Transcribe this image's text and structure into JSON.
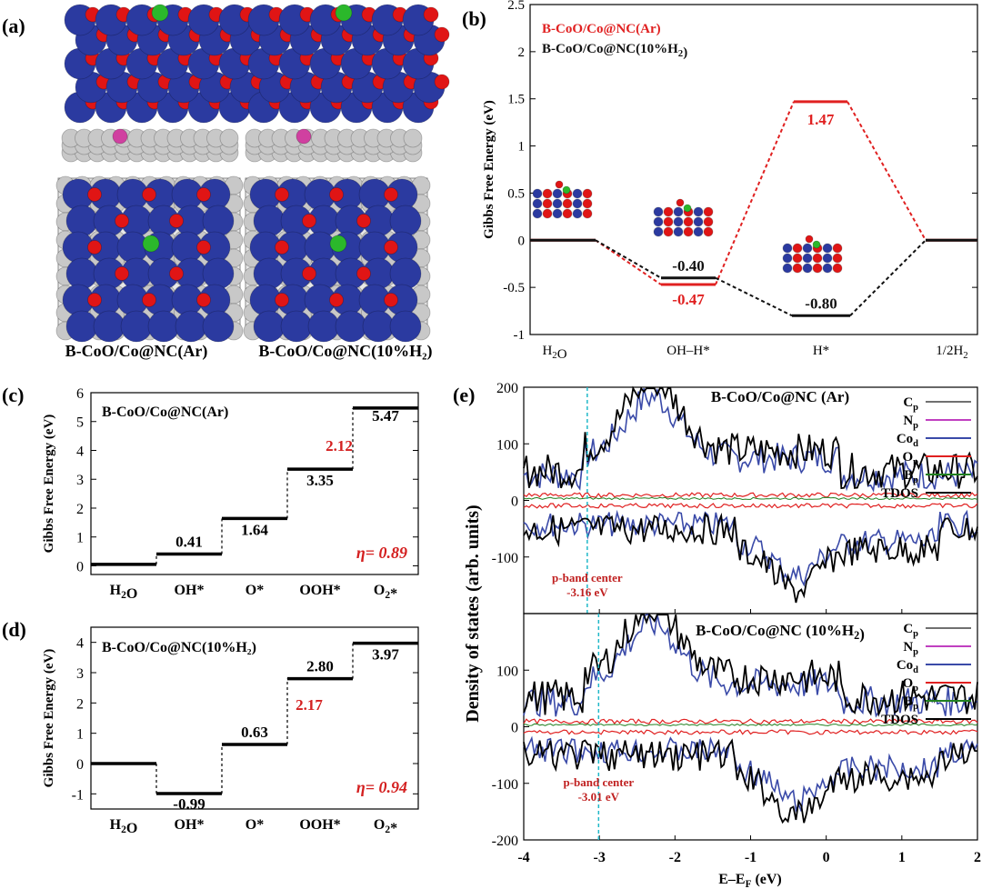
{
  "panels": {
    "a": {
      "label": "(a)",
      "captions": [
        "B-CoO/Co@NC(Ar)",
        "B-CoO/Co@NC(10%H₂)"
      ],
      "colors": {
        "co": "#2b3aa0",
        "o": "#e01515",
        "b": "#2bb82b",
        "n": "#d040a0",
        "c": "#c8c8c8"
      }
    },
    "b": {
      "label": "(b)"
    },
    "c": {
      "label": "(c)",
      "inner_title": "B-CoO/Co@NC(Ar)"
    },
    "d": {
      "label": "(d)",
      "inner_title": "B-CoO/Co@NC(10%H₂)"
    },
    "e": {
      "label": "(e)"
    }
  },
  "chart_data": [
    {
      "id": "b",
      "type": "line",
      "ylabel": "Gibbs Free Energy (eV)",
      "ylim": [
        -1,
        2.5
      ],
      "yticks": [
        -1,
        -0.5,
        0,
        0.5,
        1,
        1.5,
        2,
        2.5
      ],
      "categories": [
        "H₂O",
        "OH–H*",
        "H*",
        "1/2H₂"
      ],
      "series": [
        {
          "name": "B-CoO/Co@NC(Ar)",
          "color": "#e02020",
          "values": [
            0,
            -0.47,
            1.47,
            0
          ],
          "labels": [
            "",
            "-0.47",
            "1.47",
            ""
          ]
        },
        {
          "name": "B-CoO/Co@NC(10%H₂)",
          "color": "#111111",
          "values": [
            0,
            -0.4,
            -0.8,
            0
          ],
          "labels": [
            "",
            "-0.40",
            "-0.80",
            ""
          ]
        }
      ],
      "legend_position": "top-left"
    },
    {
      "id": "c",
      "type": "line",
      "ylabel": "Gibbs Free Energy (eV)",
      "ylim": [
        -0.3,
        6
      ],
      "yticks": [
        0,
        1,
        2,
        3,
        4,
        5,
        6
      ],
      "categories": [
        "H₂O",
        "OH*",
        "O*",
        "OOH*",
        "O₂*"
      ],
      "values": [
        0.05,
        0.41,
        1.64,
        3.35,
        5.47
      ],
      "labels": [
        "",
        "0.41",
        "1.64",
        "3.35",
        "5.47"
      ],
      "step_annotation": {
        "value": "2.12",
        "color": "#d42020"
      },
      "overpotential": "η= 0.89"
    },
    {
      "id": "d",
      "type": "line",
      "ylabel": "Gibbs Free Energy (eV)",
      "ylim": [
        -1.5,
        4.5
      ],
      "yticks": [
        -1,
        0,
        1,
        2,
        3,
        4
      ],
      "categories": [
        "H₂O",
        "OH*",
        "O*",
        "OOH*",
        "O₂*"
      ],
      "values": [
        0,
        -0.99,
        0.63,
        2.8,
        3.97
      ],
      "labels": [
        "",
        "-0.99",
        "0.63",
        "2.80",
        "3.97"
      ],
      "step_annotation": {
        "value": "2.17",
        "color": "#d42020"
      },
      "overpotential": "η= 0.94"
    },
    {
      "id": "e",
      "type": "line",
      "ylabel": "Density of states (arb. units)",
      "xlabel": "E–Eₓ",
      "xlabel_unit": "(eV)",
      "xlim": [
        -4,
        2
      ],
      "xticks": [
        -4,
        -3,
        -2,
        -1,
        0,
        1,
        2
      ],
      "subplots": [
        {
          "title": "B-CoO/Co@NC (Ar)",
          "ylim": [
            -200,
            200
          ],
          "yticks": [
            -100,
            0,
            100,
            200
          ],
          "p_band_center_label": "p-band center",
          "p_band_center_value": "-3.16 eV",
          "p_band_center": -3.16
        },
        {
          "title": "B-CoO/Co@NC (10%H₂)",
          "ylim": [
            -200,
            200
          ],
          "yticks": [
            -200,
            -100,
            0,
            100
          ],
          "p_band_center_label": "p-band center",
          "p_band_center_value": "-3.01 eV",
          "p_band_center": -3.01
        }
      ],
      "series": [
        {
          "name": "C",
          "sub": "p",
          "color": "#707070"
        },
        {
          "name": "N",
          "sub": "p",
          "color": "#c040c0"
        },
        {
          "name": "Co",
          "sub": "d",
          "color": "#3a4aa8"
        },
        {
          "name": "O",
          "sub": "p",
          "color": "#e02020"
        },
        {
          "name": "B",
          "sub": "p",
          "color": "#208020"
        },
        {
          "name": "TDOS",
          "sub": "",
          "color": "#000000"
        }
      ]
    }
  ]
}
